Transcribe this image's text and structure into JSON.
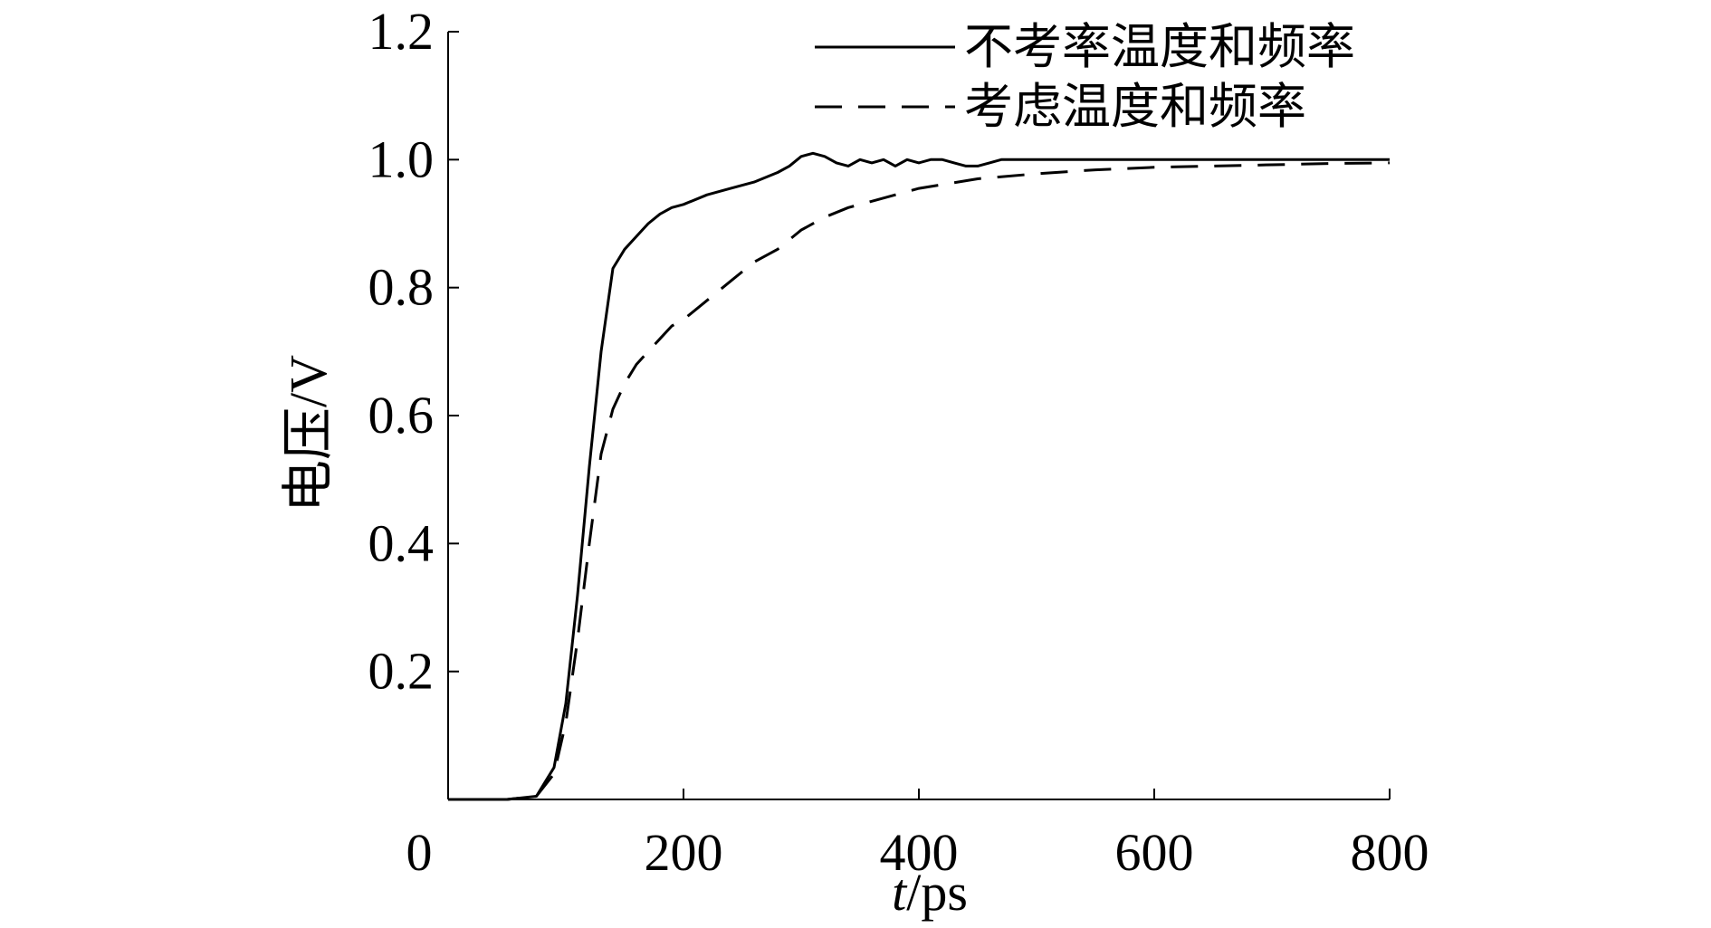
{
  "chart_data": {
    "type": "line",
    "xlabel_italic": "t",
    "xlabel_unit": "/ps",
    "ylabel": "电压/V",
    "xlim": [
      0,
      800
    ],
    "ylim": [
      0,
      1.2
    ],
    "xticks": [
      0,
      200,
      400,
      600,
      800
    ],
    "xtick_labels": [
      "0",
      "200",
      "400",
      "600",
      "800"
    ],
    "yticks": [
      0.2,
      0.4,
      0.6,
      0.8,
      1.0,
      1.2
    ],
    "ytick_labels": [
      "0.2",
      "0.4",
      "0.6",
      "0.8",
      "1.0",
      "1.2"
    ],
    "grid": false,
    "legend_position": "top-right",
    "series": [
      {
        "name": "不考率温度和频率",
        "style": "solid",
        "x": [
          0,
          50,
          75,
          90,
          100,
          110,
          120,
          130,
          140,
          150,
          160,
          170,
          180,
          190,
          200,
          220,
          240,
          260,
          280,
          290,
          300,
          310,
          320,
          330,
          340,
          350,
          360,
          370,
          380,
          390,
          400,
          410,
          420,
          430,
          440,
          450,
          460,
          470,
          480,
          490,
          500,
          600,
          700,
          800
        ],
        "y": [
          0,
          0,
          0.005,
          0.05,
          0.15,
          0.32,
          0.52,
          0.7,
          0.83,
          0.86,
          0.88,
          0.9,
          0.915,
          0.925,
          0.93,
          0.945,
          0.955,
          0.965,
          0.98,
          0.99,
          1.005,
          1.01,
          1.005,
          0.995,
          0.99,
          1.0,
          0.995,
          1.0,
          0.99,
          1.0,
          0.995,
          1.0,
          1.0,
          0.995,
          0.99,
          0.99,
          0.995,
          1.0,
          1.0,
          1.0,
          1.0,
          1.0,
          1.0,
          1.0
        ]
      },
      {
        "name": "考虑温度和频率",
        "style": "dashed",
        "x": [
          0,
          50,
          75,
          90,
          100,
          110,
          120,
          130,
          140,
          150,
          160,
          170,
          180,
          190,
          200,
          220,
          240,
          260,
          280,
          300,
          320,
          340,
          360,
          380,
          400,
          450,
          500,
          550,
          600,
          650,
          700,
          750,
          800
        ],
        "y": [
          0,
          0,
          0.005,
          0.04,
          0.12,
          0.25,
          0.4,
          0.54,
          0.61,
          0.65,
          0.68,
          0.7,
          0.72,
          0.74,
          0.75,
          0.78,
          0.81,
          0.84,
          0.86,
          0.89,
          0.91,
          0.925,
          0.935,
          0.945,
          0.955,
          0.97,
          0.978,
          0.984,
          0.988,
          0.99,
          0.992,
          0.994,
          0.995
        ]
      }
    ]
  }
}
